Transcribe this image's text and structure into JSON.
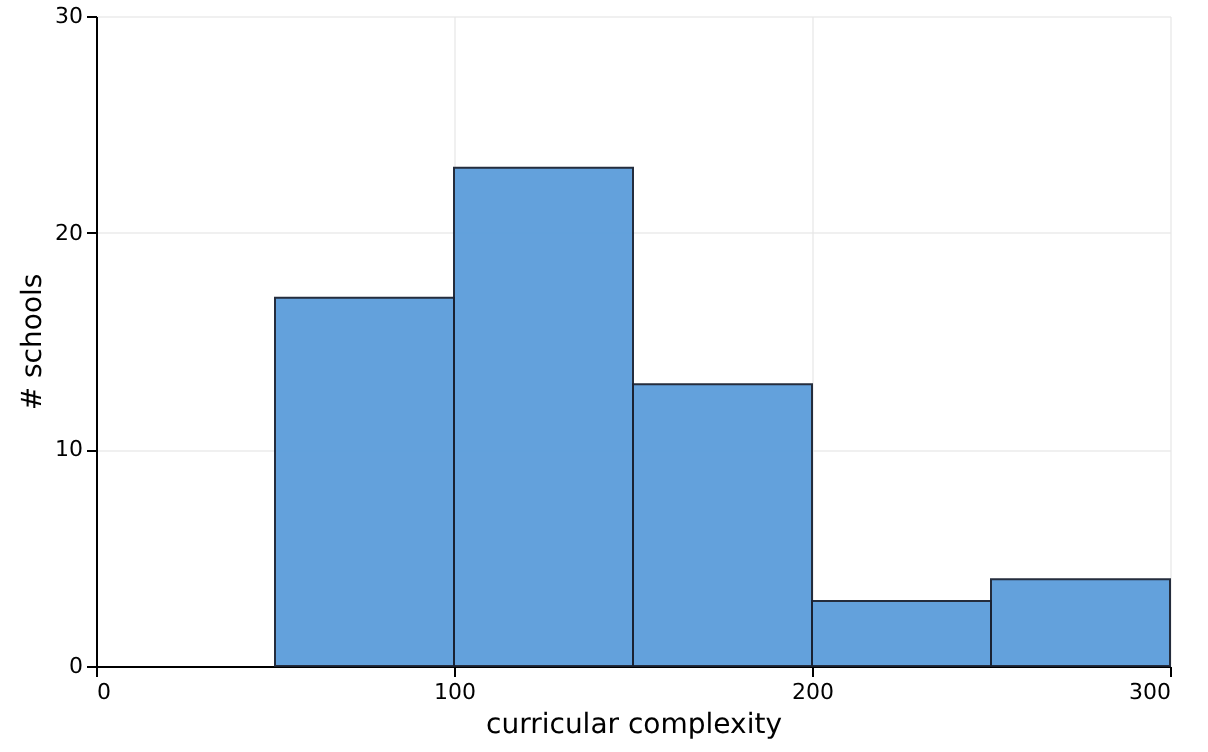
{
  "chart_data": {
    "type": "histogram",
    "xlabel": "curricular complexity",
    "ylabel": "# schools",
    "bins": [
      50,
      100,
      150,
      200,
      250,
      300
    ],
    "values": [
      17,
      23,
      13,
      3,
      4
    ],
    "color": "#5b9ddb",
    "xlim": [
      0,
      300
    ],
    "xticks": [
      0,
      100,
      200,
      300
    ],
    "ylim": [
      0,
      30
    ],
    "yticks": [
      0,
      10,
      20,
      30
    ],
    "grid": true
  }
}
